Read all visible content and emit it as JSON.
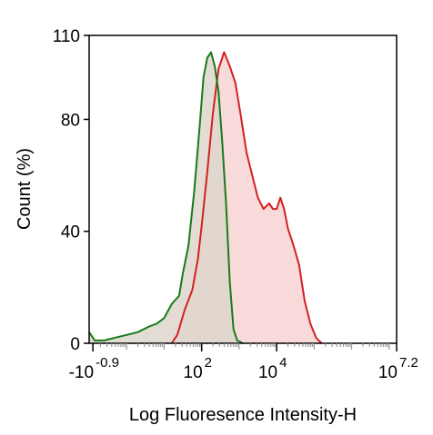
{
  "chart_data": {
    "type": "area",
    "xlabel": "Log Fluoresence Intensity-H",
    "ylabel": "Count  (%)",
    "y_ticks": [
      "0",
      "40",
      "80",
      "110"
    ],
    "y_tick_values": [
      0,
      40,
      80,
      110
    ],
    "ylim": [
      0,
      110
    ],
    "x_ticks": [
      {
        "base": "-10",
        "exp": "-0.9",
        "value": -0.9
      },
      {
        "base": "10",
        "exp": "2",
        "value": 2
      },
      {
        "base": "10",
        "exp": "4",
        "value": 4
      },
      {
        "base": "10",
        "exp": "7.2",
        "value": 7.2
      }
    ],
    "xlim": [
      -1.0,
      7.2
    ],
    "grid": false,
    "series": [
      {
        "color": "#1a7a1a",
        "fill": "#ddd6cc",
        "points": [
          [
            -1.0,
            4
          ],
          [
            -0.85,
            1
          ],
          [
            -0.6,
            1
          ],
          [
            -0.3,
            2
          ],
          [
            0.0,
            3
          ],
          [
            0.3,
            4
          ],
          [
            0.6,
            6
          ],
          [
            0.8,
            7
          ],
          [
            1.0,
            9
          ],
          [
            1.2,
            14
          ],
          [
            1.4,
            17
          ],
          [
            1.5,
            25
          ],
          [
            1.65,
            35
          ],
          [
            1.8,
            54
          ],
          [
            1.95,
            78
          ],
          [
            2.05,
            95
          ],
          [
            2.15,
            102
          ],
          [
            2.25,
            104
          ],
          [
            2.35,
            99
          ],
          [
            2.45,
            90
          ],
          [
            2.55,
            72
          ],
          [
            2.65,
            50
          ],
          [
            2.75,
            22
          ],
          [
            2.85,
            5
          ],
          [
            2.95,
            1
          ],
          [
            3.1,
            0
          ]
        ]
      },
      {
        "color": "#d42020",
        "fill": "#f9dada",
        "points": [
          [
            1.2,
            0
          ],
          [
            1.35,
            3
          ],
          [
            1.55,
            12
          ],
          [
            1.75,
            19
          ],
          [
            1.9,
            30
          ],
          [
            2.0,
            42
          ],
          [
            2.15,
            61
          ],
          [
            2.3,
            82
          ],
          [
            2.45,
            98
          ],
          [
            2.6,
            104
          ],
          [
            2.75,
            99
          ],
          [
            2.9,
            93
          ],
          [
            3.05,
            81
          ],
          [
            3.2,
            68
          ],
          [
            3.35,
            60
          ],
          [
            3.5,
            52
          ],
          [
            3.65,
            48
          ],
          [
            3.8,
            50
          ],
          [
            3.9,
            48
          ],
          [
            4.0,
            48
          ],
          [
            4.1,
            52
          ],
          [
            4.2,
            48
          ],
          [
            4.3,
            41
          ],
          [
            4.45,
            35
          ],
          [
            4.6,
            28
          ],
          [
            4.75,
            15
          ],
          [
            4.9,
            7
          ],
          [
            5.05,
            2
          ],
          [
            5.2,
            0
          ]
        ]
      }
    ]
  }
}
